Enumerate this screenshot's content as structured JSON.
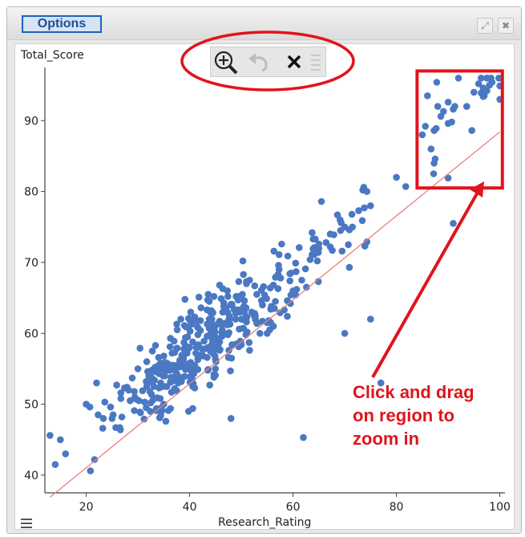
{
  "header": {
    "options_label": "Options",
    "expand_icon": "expand-icon",
    "close_icon": "close-icon"
  },
  "toolbar": {
    "icons": [
      "zoom-in-icon",
      "undo-icon",
      "reset-icon",
      "menu-icon"
    ]
  },
  "annotation": {
    "text_lines": [
      "Click and drag",
      "on region to",
      "zoom in"
    ],
    "color": "#e0141d"
  },
  "colors": {
    "points": "#4a78c2",
    "fit_line": "#e88080",
    "highlight": "#e0141d"
  },
  "chart_data": {
    "type": "scatter",
    "xlabel": "Research_Rating",
    "ylabel": "Total_Score",
    "xlim": [
      12,
      101
    ],
    "ylim": [
      37.5,
      97.5
    ],
    "x_ticks": [
      "20",
      "40",
      "60",
      "80",
      "100"
    ],
    "y_ticks": [
      "40",
      "50",
      "60",
      "70",
      "80",
      "90"
    ],
    "point_count": 900,
    "seed": 7,
    "regression": {
      "slope": 0.592,
      "intercept": 29.2,
      "x_range": [
        13,
        100
      ]
    },
    "zoom_region": {
      "x": [
        84,
        100.5
      ],
      "y": [
        80.5,
        97
      ]
    },
    "sample_points": [
      [
        13,
        45.6
      ],
      [
        14,
        41.5
      ],
      [
        15,
        45
      ],
      [
        16,
        43
      ],
      [
        20,
        50
      ],
      [
        22,
        53
      ],
      [
        25,
        48
      ],
      [
        30,
        55
      ],
      [
        35,
        50
      ],
      [
        40,
        58
      ],
      [
        45,
        55
      ],
      [
        50,
        62
      ],
      [
        55,
        60
      ],
      [
        60,
        66
      ],
      [
        65,
        72
      ],
      [
        70,
        75
      ],
      [
        75,
        78
      ],
      [
        80,
        82
      ],
      [
        85,
        88
      ],
      [
        88,
        92
      ],
      [
        92,
        96
      ],
      [
        95,
        94
      ],
      [
        98,
        95
      ],
      [
        100,
        93
      ],
      [
        70,
        60
      ],
      [
        75,
        62
      ],
      [
        77,
        53
      ],
      [
        48,
        48
      ],
      [
        62,
        45.3
      ],
      [
        91,
        75.5
      ]
    ]
  }
}
